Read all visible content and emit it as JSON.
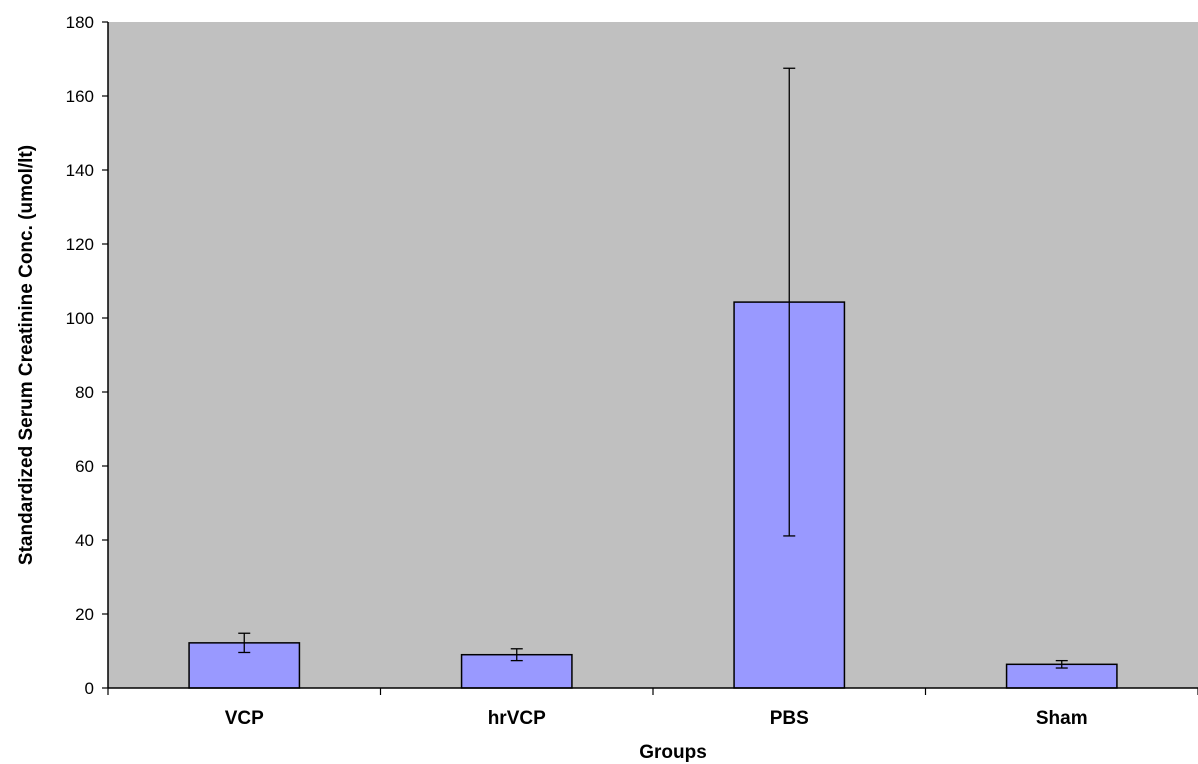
{
  "chart_data": {
    "type": "bar",
    "title": "",
    "xlabel": "Groups",
    "ylabel": "Standardized Serum Creatinine Conc. (umol/lt)",
    "ylim": [
      0,
      180
    ],
    "yticks": [
      0,
      20,
      40,
      60,
      80,
      100,
      120,
      140,
      160,
      180
    ],
    "categories": [
      "VCP",
      "hrVCP",
      "PBS",
      "Sham"
    ],
    "series": [
      {
        "values": [
          12.2,
          9.0,
          104.3,
          6.4
        ],
        "error": [
          2.6,
          1.6,
          63.2,
          1.0
        ]
      }
    ],
    "grid": false,
    "legend": "none",
    "colors": {
      "plot_background": "#c0c0c0",
      "bar_fill": "#9999ff",
      "bar_stroke": "#000000"
    }
  }
}
